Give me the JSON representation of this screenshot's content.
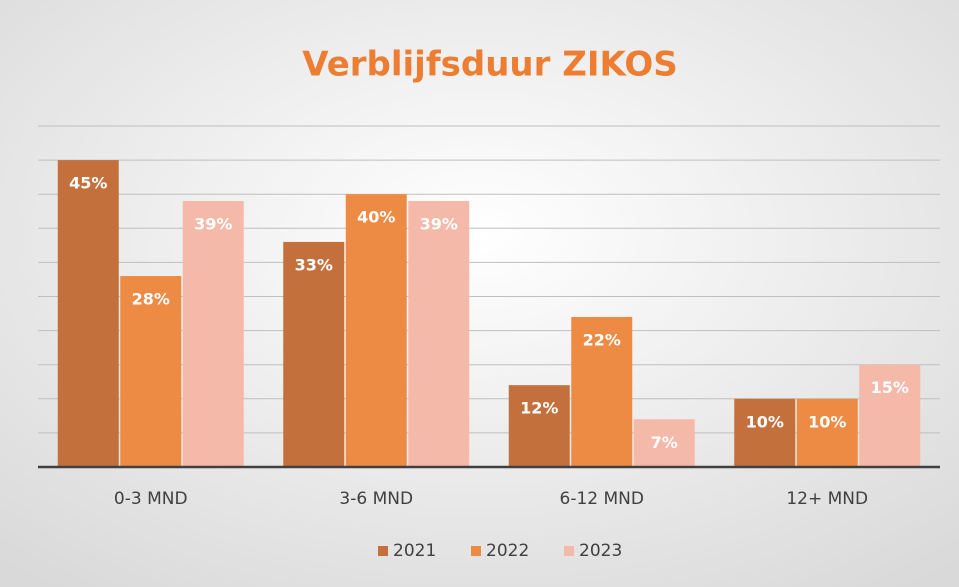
{
  "chart_data": {
    "type": "bar",
    "title": "Verblijfsduur ZIKOS",
    "categories": [
      "0-3 MND",
      "3-6 MND",
      "6-12 MND",
      "12+ MND"
    ],
    "series": [
      {
        "name": "2021",
        "color": "#c4703d",
        "values": [
          45,
          33,
          12,
          10
        ],
        "value_labels": [
          "45%",
          "33%",
          "12%",
          "10%"
        ]
      },
      {
        "name": "2022",
        "color": "#ed8b45",
        "values": [
          28,
          40,
          22,
          10
        ],
        "value_labels": [
          "28%",
          "40%",
          "22%",
          "10%"
        ]
      },
      {
        "name": "2023",
        "color": "#f4b9a8",
        "values": [
          39,
          39,
          7,
          15
        ],
        "value_labels": [
          "39%",
          "39%",
          "7%",
          "15%"
        ]
      }
    ],
    "ylim": [
      0,
      50
    ],
    "yticks": [
      0,
      5,
      10,
      15,
      20,
      25,
      30,
      35,
      40,
      45,
      50
    ],
    "grid": true,
    "legend": "bottom"
  }
}
